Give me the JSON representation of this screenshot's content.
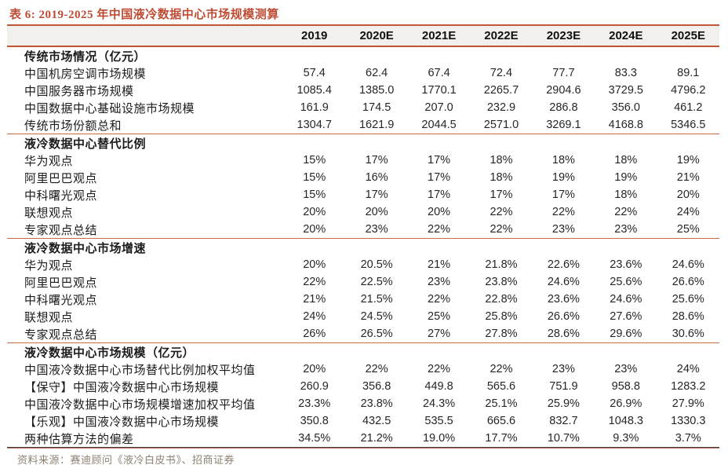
{
  "title": "表 6: 2019-2025 年中国液冷数据中心市场规模测算",
  "columns": [
    "2019",
    "2020E",
    "2021E",
    "2022E",
    "2023E",
    "2024E",
    "2025E"
  ],
  "sections": [
    {
      "header": "传统市场情况（亿元）",
      "rows": [
        {
          "label": "中国机房空调市场规模",
          "values": [
            "57.4",
            "62.4",
            "67.4",
            "72.4",
            "77.7",
            "83.3",
            "89.1"
          ]
        },
        {
          "label": "中国服务器市场规模",
          "values": [
            "1085.4",
            "1385.0",
            "1770.1",
            "2265.7",
            "2904.6",
            "3729.5",
            "4796.2"
          ]
        },
        {
          "label": "中国数据中心基础设施市场规模",
          "values": [
            "161.9",
            "174.5",
            "207.0",
            "232.9",
            "286.8",
            "356.0",
            "461.2"
          ]
        },
        {
          "label": "传统市场份额总和",
          "values": [
            "1304.7",
            "1621.9",
            "2044.5",
            "2571.0",
            "3269.1",
            "4168.8",
            "5346.5"
          ]
        }
      ]
    },
    {
      "header": "液冷数据中心替代比例",
      "rows": [
        {
          "label": "华为观点",
          "values": [
            "15%",
            "17%",
            "17%",
            "18%",
            "18%",
            "18%",
            "19%"
          ]
        },
        {
          "label": "阿里巴巴观点",
          "values": [
            "15%",
            "16%",
            "17%",
            "18%",
            "19%",
            "19%",
            "21%"
          ]
        },
        {
          "label": "中科曙光观点",
          "values": [
            "15%",
            "17%",
            "17%",
            "17%",
            "17%",
            "18%",
            "20%"
          ]
        },
        {
          "label": "联想观点",
          "values": [
            "20%",
            "20%",
            "20%",
            "22%",
            "22%",
            "22%",
            "24%"
          ]
        },
        {
          "label": "专家观点总结",
          "values": [
            "20%",
            "23%",
            "22%",
            "22%",
            "23%",
            "23%",
            "25%"
          ]
        }
      ]
    },
    {
      "header": "液冷数据中心市场增速",
      "rows": [
        {
          "label": "华为观点",
          "values": [
            "20%",
            "20.5%",
            "21%",
            "21.8%",
            "22.6%",
            "23.6%",
            "24.6%"
          ]
        },
        {
          "label": "阿里巴巴观点",
          "values": [
            "22%",
            "22.5%",
            "23%",
            "23.8%",
            "24.6%",
            "25.6%",
            "26.6%"
          ]
        },
        {
          "label": "中科曙光观点",
          "values": [
            "21%",
            "21.5%",
            "22%",
            "22.8%",
            "23.6%",
            "24.6%",
            "25.6%"
          ]
        },
        {
          "label": "联想观点",
          "values": [
            "24%",
            "24.5%",
            "25%",
            "25.8%",
            "26.6%",
            "27.6%",
            "28.6%"
          ]
        },
        {
          "label": "专家观点总结",
          "values": [
            "26%",
            "26.5%",
            "27%",
            "27.8%",
            "28.6%",
            "29.6%",
            "30.6%"
          ]
        }
      ]
    },
    {
      "header": "液冷数据中心市场规模（亿元）",
      "rows": [
        {
          "label": "中国液冷数据中心市场替代比例加权平均值",
          "values": [
            "20%",
            "22%",
            "22%",
            "22%",
            "23%",
            "23%",
            "24%"
          ]
        },
        {
          "label": "【保守】中国液冷数据中心市场规模",
          "values": [
            "260.9",
            "356.8",
            "449.8",
            "565.6",
            "751.9",
            "958.8",
            "1283.2"
          ]
        },
        {
          "label": "中国液冷数据中心市场规模增速加权平均值",
          "values": [
            "23.3%",
            "23.8%",
            "24.3%",
            "25.1%",
            "25.9%",
            "26.9%",
            "27.9%"
          ]
        },
        {
          "label": "【乐观】中国液冷数据中心市场规模",
          "values": [
            "350.8",
            "432.5",
            "535.5",
            "665.6",
            "832.7",
            "1048.3",
            "1330.3"
          ]
        },
        {
          "label": "两种估算方法的偏差",
          "values": [
            "34.5%",
            "21.2%",
            "19.0%",
            "17.7%",
            "10.7%",
            "9.3%",
            "3.7%"
          ]
        }
      ]
    }
  ],
  "source": "资料来源：赛迪顾问《液冷白皮书》、招商证券",
  "colors": {
    "accent_line": "#C25533",
    "title_text": "#BE4B33",
    "header_bg": "#F2F0ED",
    "body_text": "#262626",
    "source_text": "#8C8172"
  }
}
